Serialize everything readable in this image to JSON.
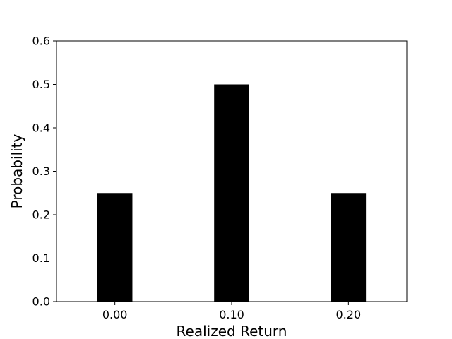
{
  "chart_data": {
    "type": "bar",
    "categories": [
      "0.00",
      "0.10",
      "0.20"
    ],
    "values": [
      0.25,
      0.5,
      0.25
    ],
    "xlabel": "Realized Return",
    "ylabel": "Probability",
    "ylim": [
      0,
      0.6
    ],
    "yticks": [
      "0.0",
      "0.1",
      "0.2",
      "0.3",
      "0.4",
      "0.5",
      "0.6"
    ],
    "bar_color": "#000000",
    "grid": false,
    "legend": "none"
  }
}
